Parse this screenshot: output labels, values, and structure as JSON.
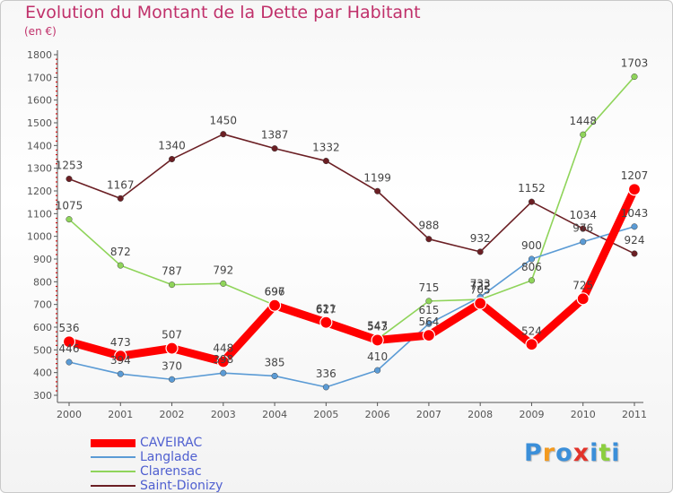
{
  "chart_data": {
    "type": "line",
    "title": "Evolution du Montant de la Dette par Habitant",
    "subtitle": "(en €)",
    "x": [
      "2000",
      "2001",
      "2002",
      "2003",
      "2004",
      "2005",
      "2006",
      "2007",
      "2008",
      "2009",
      "2010",
      "2011"
    ],
    "ylim": [
      300,
      1800
    ],
    "yticks": [
      300,
      400,
      500,
      600,
      700,
      800,
      900,
      1000,
      1100,
      1200,
      1300,
      1400,
      1500,
      1600,
      1700,
      1800
    ],
    "grid": false,
    "legend_position": "bottom-left",
    "series": [
      {
        "name": "Saint-Dionizy",
        "color": "#6b1f24",
        "values": [
          1253,
          1167,
          1340,
          1450,
          1387,
          1332,
          1199,
          988,
          932,
          1152,
          1034,
          924
        ]
      },
      {
        "name": "Clarensac",
        "color": "#8fd45a",
        "values": [
          1075,
          872,
          787,
          792,
          697,
          617,
          547,
          715,
          722,
          806,
          1448,
          1703
        ]
      },
      {
        "name": "Langlade",
        "color": "#5b9bd5",
        "values": [
          446,
          394,
          370,
          398,
          385,
          336,
          410,
          615,
          733,
          900,
          976,
          1043
        ]
      },
      {
        "name": "CAVEIRAC",
        "color": "#ff0000",
        "values": [
          536,
          473,
          507,
          448,
          696,
          621,
          543,
          564,
          705,
          524,
          725,
          1207
        ]
      }
    ]
  },
  "logo": {
    "letters": [
      "P",
      "r",
      "o",
      "x",
      "i",
      "t",
      "i"
    ],
    "colors": [
      "#3b8fd9",
      "#f39a1f",
      "#3b8fd9",
      "#e2332a",
      "#3b8fd9",
      "#8ccf3f",
      "#3b8fd9"
    ]
  }
}
